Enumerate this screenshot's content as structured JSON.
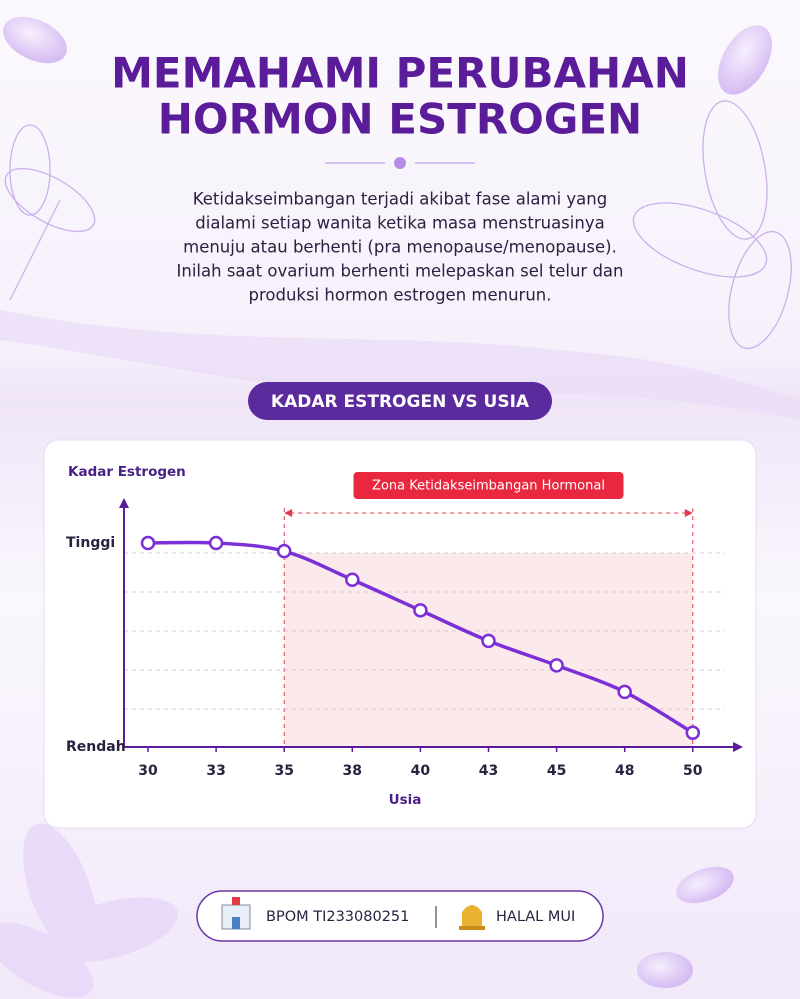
{
  "header": {
    "title_lines": [
      "MEMAHAMI PERUBAHAN",
      "HORMON ESTROGEN"
    ]
  },
  "intro": {
    "lines": [
      "Ketidakseimbangan terjadi akibat fase alami yang",
      "dialami setiap wanita ketika masa menstruasinya",
      "menuju atau berhenti (pra menopause/menopause).",
      "Inilah saat ovarium berhenti melepaskan sel telur dan",
      "produksi hormon estrogen menurun."
    ]
  },
  "chart_data": {
    "type": "line",
    "title": "KADAR ESTROGEN VS USIA",
    "y_label": "Kadar Estrogen",
    "x_label": "Usia",
    "categories": [
      "30",
      "33",
      "35",
      "38",
      "40",
      "43",
      "45",
      "48",
      "50"
    ],
    "values": [
      100,
      100,
      96,
      82,
      67,
      52,
      40,
      27,
      7
    ],
    "color": "#7b2fd6",
    "ylim": [
      0,
      100
    ],
    "yticks": [
      {
        "value": 100,
        "label": "Tinggi"
      },
      {
        "value": 0,
        "label": "Rendah"
      }
    ],
    "zone": {
      "label": "Zona Ketidakseimbangan Hormonal",
      "start": "35",
      "end": "50",
      "color": "#fbe3e6"
    }
  },
  "footer": {
    "items": [
      "BPOM TI233080251",
      "HALAL MUI"
    ]
  }
}
